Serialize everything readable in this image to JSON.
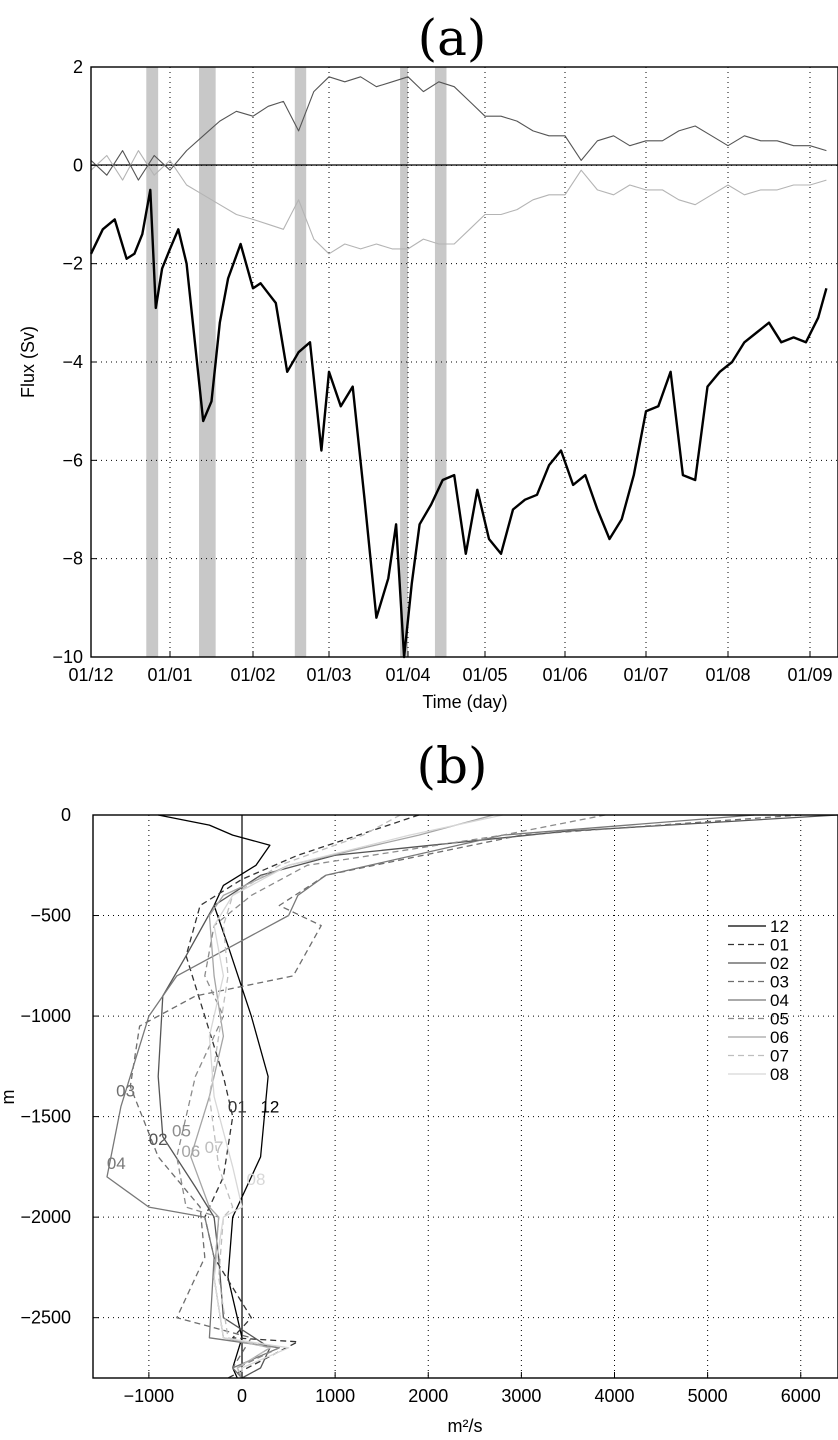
{
  "chart_data": [
    {
      "panel_label": "(a)",
      "type": "line",
      "xlabel": "Time (day)",
      "ylabel": "Flux (Sv)",
      "ylim": [
        -10,
        2
      ],
      "y_ticks": [
        "2",
        "0",
        "−2",
        "−4",
        "−6",
        "−8",
        "−10"
      ],
      "x_ticks": [
        "01/12",
        "01/01",
        "01/02",
        "01/03",
        "01/04",
        "01/05",
        "01/06",
        "01/07",
        "01/08",
        "01/09"
      ],
      "grid": "dotted",
      "shaded_periods": [
        [
          0.7,
          0.85
        ],
        [
          1.35,
          1.55
        ],
        [
          2.55,
          2.7
        ],
        [
          3.9,
          4.0
        ],
        [
          4.35,
          4.5
        ]
      ],
      "series": [
        {
          "color": "#000000",
          "t": [
            0.0,
            0.15,
            0.3,
            0.45,
            0.55,
            0.65,
            0.75,
            0.82,
            0.9,
            1.0,
            1.1,
            1.2,
            1.3,
            1.4,
            1.5,
            1.6,
            1.7,
            1.85,
            2.0,
            2.1,
            2.2,
            2.3,
            2.45,
            2.6,
            2.75,
            2.9,
            3.0,
            3.15,
            3.3,
            3.45,
            3.6,
            3.75,
            3.85,
            3.95,
            4.05,
            4.15,
            4.3,
            4.45,
            4.6,
            4.75,
            4.9,
            5.05,
            5.2,
            5.35,
            5.5,
            5.65,
            5.8,
            5.95,
            6.1,
            6.25,
            6.4,
            6.55,
            6.7,
            6.85,
            7.0,
            7.15,
            7.3,
            7.45,
            7.6,
            7.75,
            7.9,
            8.05,
            8.2,
            8.35,
            8.5,
            8.65,
            8.8,
            8.95,
            9.1,
            9.2
          ],
          "flux": [
            -1.8,
            -1.3,
            -1.1,
            -1.9,
            -1.8,
            -1.4,
            -0.5,
            -2.9,
            -2.1,
            -1.7,
            -1.3,
            -2.0,
            -3.6,
            -5.2,
            -4.8,
            -3.2,
            -2.3,
            -1.6,
            -2.5,
            -2.4,
            -2.6,
            -2.8,
            -4.2,
            -3.8,
            -3.6,
            -5.8,
            -4.2,
            -4.9,
            -4.5,
            -6.8,
            -9.2,
            -8.4,
            -7.3,
            -10.0,
            -8.5,
            -7.3,
            -6.9,
            -6.4,
            -6.3,
            -7.9,
            -6.6,
            -7.6,
            -7.9,
            -7.0,
            -6.8,
            -6.7,
            -6.1,
            -5.8,
            -6.5,
            -6.3,
            -7.0,
            -7.6,
            -7.2,
            -6.3,
            -5.0,
            -4.9,
            -4.2,
            -6.3,
            -6.4,
            -4.5,
            -4.2,
            -4.0,
            -3.6,
            -3.4,
            -3.2,
            -3.6,
            -3.5,
            -3.6,
            -3.1,
            -2.5
          ]
        },
        {
          "color": "#555555",
          "t": [
            0.0,
            0.2,
            0.4,
            0.6,
            0.8,
            1.0,
            1.2,
            1.4,
            1.6,
            1.8,
            2.0,
            2.2,
            2.4,
            2.6,
            2.8,
            3.0,
            3.2,
            3.4,
            3.6,
            3.8,
            4.0,
            4.2,
            4.4,
            4.6,
            4.8,
            5.0,
            5.2,
            5.4,
            5.6,
            5.8,
            6.0,
            6.2,
            6.4,
            6.6,
            6.8,
            7.0,
            7.2,
            7.4,
            7.6,
            7.8,
            8.0,
            8.2,
            8.4,
            8.6,
            8.8,
            9.0,
            9.2
          ],
          "flux": [
            0.1,
            -0.2,
            0.3,
            -0.3,
            0.2,
            -0.1,
            0.3,
            0.6,
            0.9,
            1.1,
            1.0,
            1.2,
            1.3,
            0.7,
            1.5,
            1.8,
            1.7,
            1.8,
            1.6,
            1.7,
            1.8,
            1.5,
            1.7,
            1.6,
            1.3,
            1.0,
            1.0,
            0.9,
            0.7,
            0.6,
            0.6,
            0.1,
            0.5,
            0.6,
            0.4,
            0.5,
            0.5,
            0.7,
            0.8,
            0.6,
            0.4,
            0.6,
            0.5,
            0.5,
            0.4,
            0.4,
            0.3
          ]
        },
        {
          "color": "#b4b4b4",
          "t": [
            0.0,
            0.2,
            0.4,
            0.6,
            0.8,
            1.0,
            1.2,
            1.4,
            1.6,
            1.8,
            2.0,
            2.2,
            2.4,
            2.6,
            2.8,
            3.0,
            3.2,
            3.4,
            3.6,
            3.8,
            4.0,
            4.2,
            4.4,
            4.6,
            4.8,
            5.0,
            5.2,
            5.4,
            5.6,
            5.8,
            6.0,
            6.2,
            6.4,
            6.6,
            6.8,
            7.0,
            7.2,
            7.4,
            7.6,
            7.8,
            8.0,
            8.2,
            8.4,
            8.6,
            8.8,
            9.0,
            9.2
          ],
          "flux": [
            -0.1,
            0.2,
            -0.3,
            0.3,
            -0.2,
            0.1,
            -0.4,
            -0.6,
            -0.8,
            -1.0,
            -1.1,
            -1.2,
            -1.3,
            -0.7,
            -1.5,
            -1.8,
            -1.6,
            -1.7,
            -1.6,
            -1.7,
            -1.7,
            -1.5,
            -1.6,
            -1.6,
            -1.3,
            -1.0,
            -1.0,
            -0.9,
            -0.7,
            -0.6,
            -0.6,
            -0.1,
            -0.5,
            -0.6,
            -0.4,
            -0.5,
            -0.5,
            -0.7,
            -0.8,
            -0.6,
            -0.4,
            -0.6,
            -0.5,
            -0.5,
            -0.4,
            -0.4,
            -0.3
          ]
        }
      ]
    },
    {
      "panel_label": "(b)",
      "type": "line",
      "xlabel": "m²/s",
      "ylabel": "m",
      "xlim": [
        -1600,
        6400
      ],
      "ylim": [
        -2800,
        0
      ],
      "x_ticks": [
        "−1000",
        "0",
        "1000",
        "2000",
        "3000",
        "4000",
        "5000",
        "6000"
      ],
      "y_ticks": [
        "0",
        "−500",
        "−1000",
        "−1500",
        "−2000",
        "−2500"
      ],
      "grid": "dotted",
      "legend_position": "right",
      "series": [
        {
          "name": "12",
          "color": "#000000",
          "dash": "",
          "label_at": [
            300,
            -1480
          ],
          "x": [
            -900,
            -350,
            -100,
            300,
            150,
            -200,
            -300,
            -150,
            100,
            280,
            200,
            -100,
            -150,
            0,
            -100,
            -50
          ],
          "depth": [
            0,
            -50,
            -100,
            -150,
            -250,
            -350,
            -450,
            -650,
            -1000,
            -1300,
            -1700,
            -2000,
            -2300,
            -2600,
            -2750,
            -2800
          ]
        },
        {
          "name": "01",
          "color": "#333333",
          "dash": "6,4",
          "label_at": [
            -50,
            -1480
          ],
          "x": [
            1900,
            1250,
            600,
            0,
            -450,
            -600,
            -400,
            -200,
            -100,
            -200,
            -400,
            -300,
            100,
            -100,
            600,
            -150
          ],
          "depth": [
            0,
            -100,
            -200,
            -320,
            -450,
            -700,
            -1000,
            -1300,
            -1500,
            -1800,
            -2000,
            -2200,
            -2500,
            -2600,
            -2620,
            -2800
          ]
        },
        {
          "name": "02",
          "color": "#555555",
          "dash": "",
          "label_at": [
            -900,
            -1640
          ],
          "x": [
            6400,
            3500,
            1000,
            200,
            -300,
            -600,
            -850,
            -900,
            -850,
            -500,
            -300,
            -250,
            -200,
            300,
            200,
            0
          ],
          "depth": [
            0,
            -80,
            -200,
            -300,
            -450,
            -700,
            -900,
            -1300,
            -1600,
            -1850,
            -2000,
            -2200,
            -2500,
            -2650,
            -2750,
            -2800
          ]
        },
        {
          "name": "03",
          "color": "#6e6e6e",
          "dash": "6,4",
          "label_at": [
            -1250,
            -1400
          ],
          "x": [
            6000,
            3000,
            900,
            400,
            850,
            550,
            -500,
            -1100,
            -1200,
            -900,
            -450,
            -400,
            -700,
            100,
            -100,
            0
          ],
          "depth": [
            0,
            -100,
            -300,
            -450,
            -550,
            -800,
            -900,
            -1050,
            -1350,
            -1700,
            -1950,
            -2200,
            -2500,
            -2600,
            -2750,
            -2800
          ]
        },
        {
          "name": "04",
          "color": "#787878",
          "dash": "",
          "label_at": [
            -1350,
            -1760
          ],
          "x": [
            5500,
            2800,
            900,
            600,
            500,
            -700,
            -1000,
            -1300,
            -1450,
            -1000,
            -400,
            -300,
            -350,
            400,
            -100,
            0
          ],
          "depth": [
            0,
            -100,
            -300,
            -400,
            -500,
            -800,
            -1000,
            -1450,
            -1800,
            -1950,
            -2000,
            -2200,
            -2600,
            -2650,
            -2750,
            -2800
          ]
        },
        {
          "name": "05",
          "color": "#8c8c8c",
          "dash": "6,4",
          "label_at": [
            -650,
            -1600
          ],
          "x": [
            3900,
            2800,
            700,
            100,
            -300,
            -400,
            -200,
            -500,
            -700,
            -600,
            -250,
            -300,
            -200,
            400,
            -50,
            0
          ],
          "depth": [
            0,
            -100,
            -250,
            -400,
            -550,
            -800,
            -1000,
            -1300,
            -1700,
            -1950,
            -2000,
            -2300,
            -2600,
            -2650,
            -2750,
            -2800
          ]
        },
        {
          "name": "06",
          "color": "#a5a5a5",
          "dash": "",
          "label_at": [
            -550,
            -1700
          ],
          "x": [
            2700,
            1900,
            500,
            -200,
            -350,
            -300,
            -200,
            -350,
            -550,
            -350,
            -250,
            -300,
            -200,
            300,
            -50,
            0
          ],
          "depth": [
            0,
            -100,
            -250,
            -400,
            -500,
            -800,
            -1100,
            -1400,
            -1700,
            -1950,
            -2000,
            -2300,
            -2600,
            -2650,
            -2750,
            -2800
          ]
        },
        {
          "name": "07",
          "color": "#bebebe",
          "dash": "6,4",
          "label_at": [
            -300,
            -1680
          ],
          "x": [
            1700,
            1300,
            400,
            -100,
            -200,
            -150,
            -250,
            -350,
            -250,
            -100,
            -200,
            -250,
            -150,
            300,
            -50,
            0
          ],
          "depth": [
            0,
            -100,
            -250,
            -400,
            -550,
            -800,
            -1100,
            -1400,
            -1750,
            -1950,
            -2000,
            -2300,
            -2600,
            -2650,
            -2750,
            -2800
          ]
        },
        {
          "name": "08",
          "color": "#d7d7d7",
          "dash": "",
          "label_at": [
            150,
            -1840
          ],
          "x": [
            2800,
            1800,
            500,
            -100,
            -300,
            -200,
            -350,
            -300,
            -100,
            0,
            -200,
            -300,
            -200,
            500,
            0,
            0
          ],
          "depth": [
            0,
            -100,
            -250,
            -400,
            -550,
            -800,
            -1100,
            -1400,
            -1750,
            -1950,
            -2000,
            -2300,
            -2600,
            -2650,
            -2750,
            -2800
          ]
        }
      ]
    }
  ]
}
